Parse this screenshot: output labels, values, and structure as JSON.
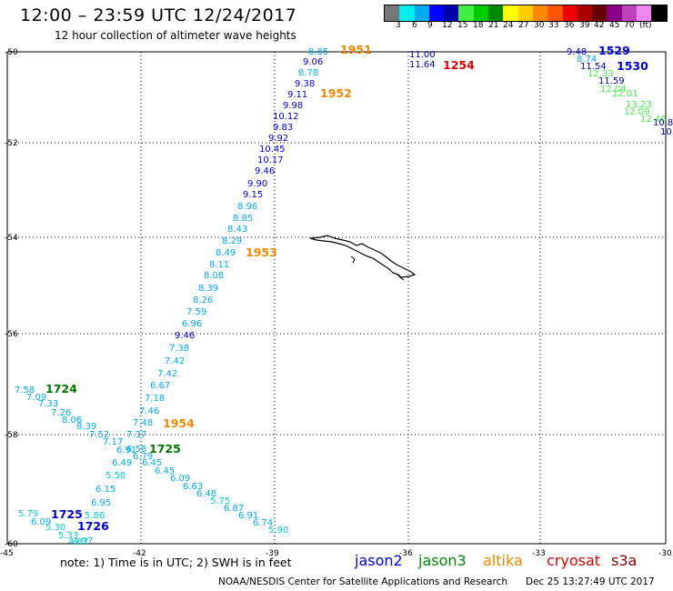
{
  "header": {
    "title": "12:00 – 23:59 UTC 12/24/2017",
    "subtitle": "12 hour collection of altimeter wave heights"
  },
  "color_scale": {
    "colors": [
      "#777777",
      "#00eeee",
      "#00aaee",
      "#0000ff",
      "#0000aa",
      "#44ee44",
      "#00cc00",
      "#008800",
      "#ffff00",
      "#ffcc00",
      "#ff8800",
      "#ff5500",
      "#ee0000",
      "#aa0000",
      "#660000",
      "#880088",
      "#bb44bb",
      "#ee88ee",
      "#000000"
    ],
    "labels": [
      "3",
      "6",
      "9",
      "12",
      "15",
      "18",
      "21",
      "24",
      "27",
      "30",
      "33",
      "36",
      "39",
      "42",
      "45",
      "70",
      "(ft)"
    ]
  },
  "axes": {
    "lat_labels": [
      "-50",
      "-52",
      "-54",
      "-56",
      "-58",
      "-60"
    ],
    "lon_labels": [
      "-45",
      "-42",
      "-39",
      "-36",
      "-33",
      "-30"
    ]
  },
  "passes": [
    {
      "label": "1951",
      "color": "#ee8800"
    },
    {
      "label": "1952",
      "color": "#ee8800"
    },
    {
      "label": "1953",
      "color": "#ee8800"
    },
    {
      "label": "1954",
      "color": "#ee8800"
    },
    {
      "label": "1254",
      "color": "#dd0000"
    },
    {
      "label": "1529",
      "color": "#0000cc"
    },
    {
      "label": "1530",
      "color": "#0000cc"
    },
    {
      "label": "1724",
      "color": "#007700"
    },
    {
      "label": "1725",
      "color": "#007700"
    },
    {
      "label": "1725",
      "color": "#0000cc"
    },
    {
      "label": "1726",
      "color": "#0000cc"
    }
  ],
  "track_values": [
    {
      "v": "8.85",
      "c": "#00aaee"
    },
    {
      "v": "9.06",
      "c": "#0000dd"
    },
    {
      "v": "8.78",
      "c": "#00aaee"
    },
    {
      "v": "9.38",
      "c": "#0000dd"
    },
    {
      "v": "9.11",
      "c": "#0000dd"
    },
    {
      "v": "9.98",
      "c": "#0000dd"
    },
    {
      "v": "10.12",
      "c": "#0000dd"
    },
    {
      "v": "9.83",
      "c": "#0000dd"
    },
    {
      "v": "9.92",
      "c": "#0000dd"
    },
    {
      "v": "10.45",
      "c": "#0000dd"
    },
    {
      "v": "10.17",
      "c": "#0000dd"
    },
    {
      "v": "9.46",
      "c": "#0000dd"
    },
    {
      "v": "9.90",
      "c": "#0000dd"
    },
    {
      "v": "9.15",
      "c": "#0000dd"
    },
    {
      "v": "8.96",
      "c": "#00aaee"
    },
    {
      "v": "8.85",
      "c": "#00aaee"
    },
    {
      "v": "8.43",
      "c": "#00aaee"
    },
    {
      "v": "8.29",
      "c": "#00aaee"
    },
    {
      "v": "8.49",
      "c": "#00aaee"
    },
    {
      "v": "8.11",
      "c": "#00aaee"
    },
    {
      "v": "8.08",
      "c": "#00aaee"
    },
    {
      "v": "8.39",
      "c": "#00aaee"
    },
    {
      "v": "8.26",
      "c": "#00aaee"
    },
    {
      "v": "7.59",
      "c": "#00aaee"
    },
    {
      "v": "6.96",
      "c": "#00aaee"
    },
    {
      "v": "9.46",
      "c": "#0000dd"
    },
    {
      "v": "7.38",
      "c": "#00aaee"
    },
    {
      "v": "7.42",
      "c": "#00aaee"
    },
    {
      "v": "7.42",
      "c": "#00aaee"
    },
    {
      "v": "6.67",
      "c": "#00aaee"
    },
    {
      "v": "7.18",
      "c": "#00aaee"
    },
    {
      "v": "7.46",
      "c": "#00aaee"
    },
    {
      "v": "7.48",
      "c": "#00aaee"
    },
    {
      "v": "7.37",
      "c": "#00aaee"
    },
    {
      "v": "7.58",
      "c": "#00aaee"
    },
    {
      "v": "7.09",
      "c": "#00aaee"
    },
    {
      "v": "7.33",
      "c": "#00aaee"
    },
    {
      "v": "7.26",
      "c": "#00aaee"
    },
    {
      "v": "8.06",
      "c": "#00aaee"
    },
    {
      "v": "8.39",
      "c": "#00aaee"
    },
    {
      "v": "7.52",
      "c": "#00aaee"
    },
    {
      "v": "7.17",
      "c": "#00aaee"
    },
    {
      "v": "6.91",
      "c": "#00aaee"
    },
    {
      "v": "6.58",
      "c": "#00aaee"
    },
    {
      "v": "6.79",
      "c": "#00aaee"
    },
    {
      "v": "6.49",
      "c": "#00aaee"
    },
    {
      "v": "6.45",
      "c": "#00aaee"
    },
    {
      "v": "6.45",
      "c": "#00aaee"
    },
    {
      "v": "5.58",
      "c": "#00cccc"
    },
    {
      "v": "6.09",
      "c": "#00aaee"
    },
    {
      "v": "6.15",
      "c": "#00aaee"
    },
    {
      "v": "6.63",
      "c": "#00aaee"
    },
    {
      "v": "6.48",
      "c": "#00aaee"
    },
    {
      "v": "6.95",
      "c": "#00aaee"
    },
    {
      "v": "5.75",
      "c": "#00cccc"
    },
    {
      "v": "6.87",
      "c": "#00aaee"
    },
    {
      "v": "5.79",
      "c": "#00cccc"
    },
    {
      "v": "6.09",
      "c": "#00aaee"
    },
    {
      "v": "5.86",
      "c": "#00cccc"
    },
    {
      "v": "6.91",
      "c": "#00aaee"
    },
    {
      "v": "6.74",
      "c": "#00aaee"
    },
    {
      "v": "5.30",
      "c": "#00cccc"
    },
    {
      "v": "5.90",
      "c": "#00cccc"
    },
    {
      "v": "5.33",
      "c": "#00cccc"
    },
    {
      "v": "4.87",
      "c": "#00cccc"
    },
    {
      "v": "4.97",
      "c": "#00cccc"
    },
    {
      "v": "11.00",
      "c": "#0000aa"
    },
    {
      "v": "11.64",
      "c": "#0000aa"
    },
    {
      "v": "9.48",
      "c": "#0000dd"
    },
    {
      "v": "8.74",
      "c": "#00aaee"
    },
    {
      "v": "11.54",
      "c": "#0000aa"
    },
    {
      "v": "12.33",
      "c": "#44ee44"
    },
    {
      "v": "11.59",
      "c": "#0000aa"
    },
    {
      "v": "12.04",
      "c": "#44ee44"
    },
    {
      "v": "12.01",
      "c": "#44ee44"
    },
    {
      "v": "13.23",
      "c": "#44ee44"
    },
    {
      "v": "12.09",
      "c": "#44ee44"
    },
    {
      "v": "12.46",
      "c": "#44ee44"
    },
    {
      "v": "10.8",
      "c": "#0000aa"
    },
    {
      "v": "10.",
      "c": "#0000aa"
    }
  ],
  "footer": {
    "note": "note: 1) Time is in UTC; 2) SWH is in feet",
    "legend": [
      {
        "name": "jason2",
        "color": "#0000dd"
      },
      {
        "name": "jason3",
        "color": "#008800"
      },
      {
        "name": "altika",
        "color": "#ee8800"
      },
      {
        "name": "cryosat",
        "color": "#dd0000"
      },
      {
        "name": "s3a",
        "color": "#880000"
      }
    ],
    "credit": "NOAA/NESDIS Center for Satellite Applications and Research",
    "generated": "Dec 25 13:27:49 UTC 2017"
  }
}
